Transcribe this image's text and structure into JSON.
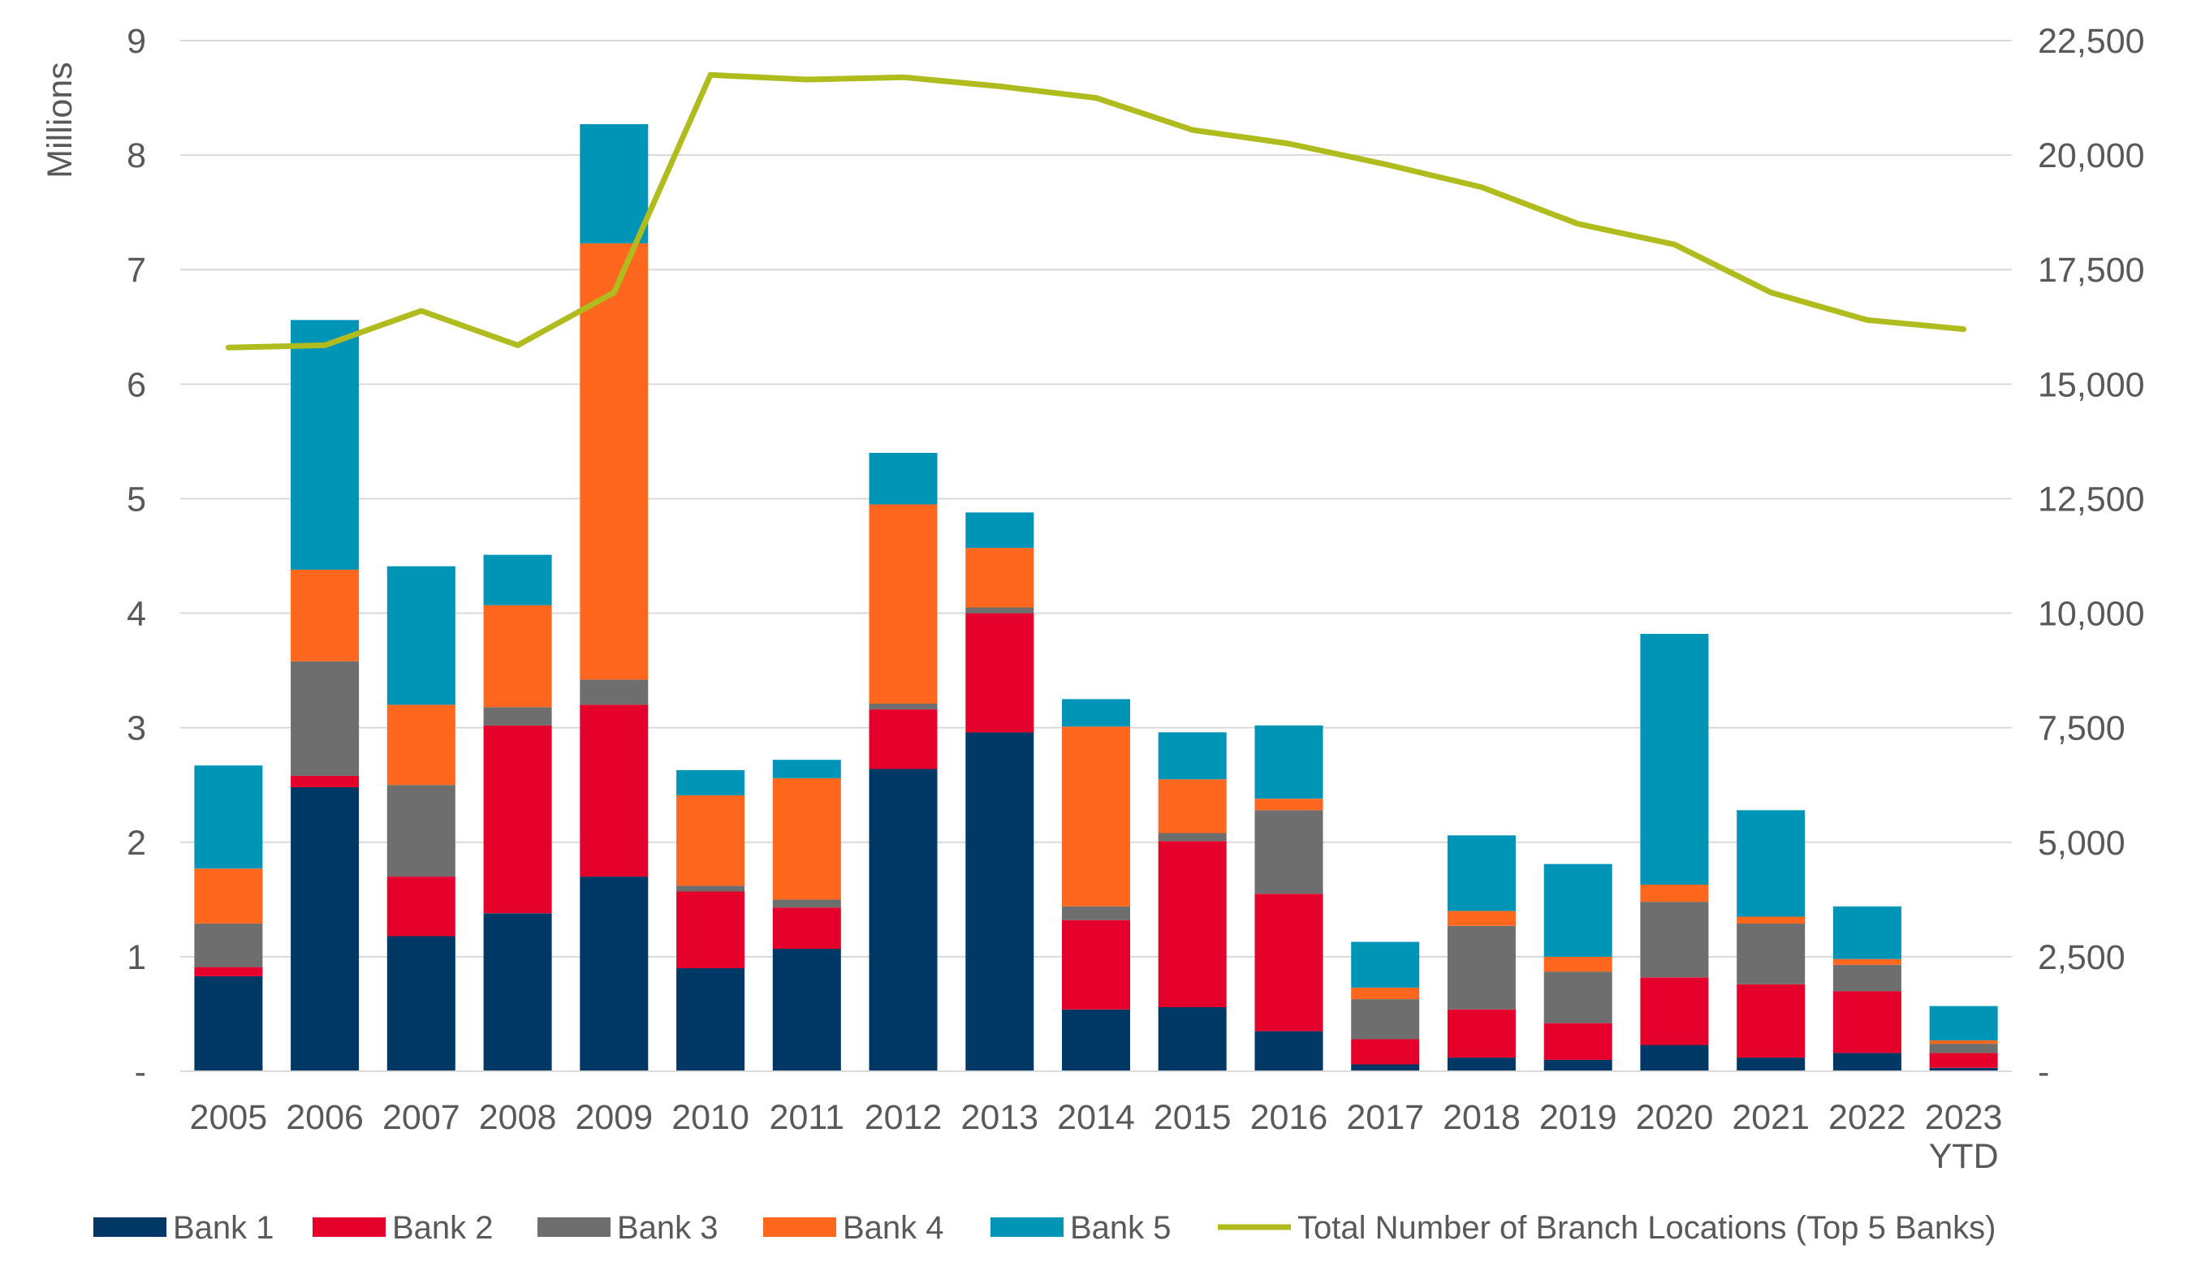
{
  "chart_data": {
    "type": "bar",
    "stacked": true,
    "categories": [
      "2005",
      "2006",
      "2007",
      "2008",
      "2009",
      "2010",
      "2011",
      "2012",
      "2013",
      "2014",
      "2015",
      "2016",
      "2017",
      "2018",
      "2019",
      "2020",
      "2021",
      "2022",
      "2023\nYTD"
    ],
    "ylabel": "Millions",
    "ylim": [
      0,
      9
    ],
    "yticks": [
      "-",
      "1",
      "2",
      "3",
      "4",
      "5",
      "6",
      "7",
      "8",
      "9"
    ],
    "y2lim": [
      0,
      22500
    ],
    "y2ticks": [
      "-",
      "2,500",
      "5,000",
      "7,500",
      "10,000",
      "12,500",
      "15,000",
      "17,500",
      "20,000",
      "22,500"
    ],
    "grid": true,
    "legend_position": "bottom",
    "series": [
      {
        "name": "Bank 1",
        "color": "#003865",
        "values": [
          0.83,
          2.48,
          1.18,
          1.38,
          1.7,
          0.9,
          1.07,
          2.64,
          2.96,
          0.54,
          0.56,
          0.35,
          0.06,
          0.12,
          0.1,
          0.23,
          0.12,
          0.16,
          0.03
        ]
      },
      {
        "name": "Bank 2",
        "color": "#e4002b",
        "values": [
          0.08,
          0.1,
          0.52,
          1.64,
          1.5,
          0.67,
          0.36,
          0.52,
          1.04,
          0.78,
          1.45,
          1.2,
          0.22,
          0.42,
          0.32,
          0.59,
          0.64,
          0.54,
          0.13
        ]
      },
      {
        "name": "Bank 3",
        "color": "#6e6e6e",
        "values": [
          0.38,
          1.0,
          0.8,
          0.16,
          0.22,
          0.05,
          0.07,
          0.05,
          0.05,
          0.12,
          0.07,
          0.73,
          0.35,
          0.73,
          0.45,
          0.66,
          0.53,
          0.23,
          0.08
        ]
      },
      {
        "name": "Bank 4",
        "color": "#ff671f",
        "values": [
          0.48,
          0.8,
          0.7,
          0.89,
          3.81,
          0.79,
          1.06,
          1.74,
          0.52,
          1.57,
          0.47,
          0.1,
          0.1,
          0.13,
          0.13,
          0.15,
          0.06,
          0.05,
          0.03
        ]
      },
      {
        "name": "Bank 5",
        "color": "#0095b6",
        "values": [
          0.9,
          2.18,
          1.21,
          0.44,
          1.04,
          0.22,
          0.16,
          0.45,
          0.31,
          0.24,
          0.41,
          0.64,
          0.4,
          0.66,
          0.81,
          2.19,
          0.93,
          0.46,
          0.3
        ]
      }
    ],
    "line_series": {
      "name": "Total Number of Branch Locations (Top 5 Banks)",
      "color": "#b0bb1e",
      "axis": "right",
      "values": [
        15800,
        15850,
        16600,
        15850,
        17000,
        21750,
        21650,
        21700,
        21500,
        21250,
        20550,
        20250,
        19800,
        19300,
        18500,
        18050,
        17000,
        16400,
        16200
      ]
    }
  }
}
